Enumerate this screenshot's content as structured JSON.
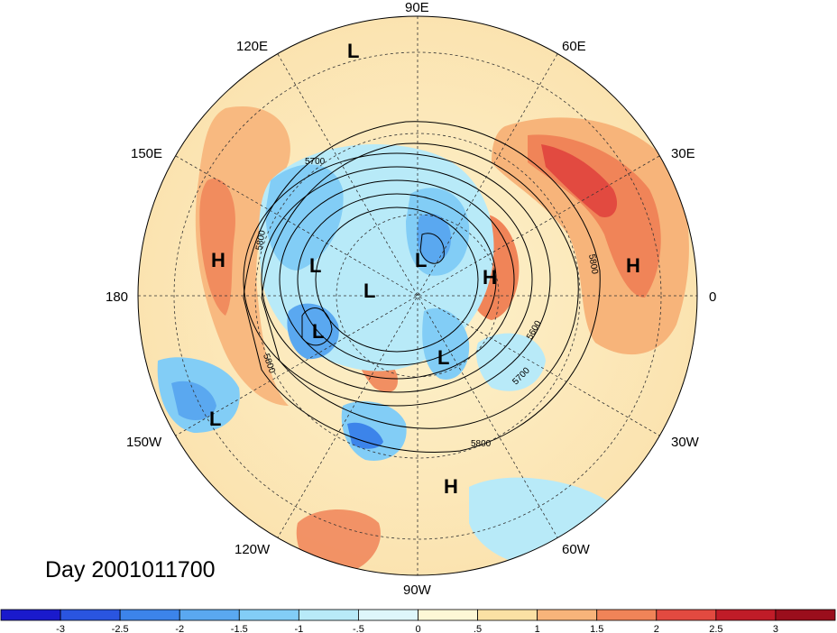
{
  "title": "Day 2001011700",
  "longitude_labels": [
    "90E",
    "60E",
    "30E",
    "0",
    "30W",
    "60W",
    "90W",
    "120W",
    "150W",
    "180",
    "150E",
    "120E"
  ],
  "contour_labels": [
    "5700",
    "5800",
    "5800",
    "5800",
    "5600",
    "5700",
    "5800"
  ],
  "pressure_centers": [
    "L",
    "L",
    "L",
    "L",
    "L",
    "L",
    "L",
    "H",
    "H",
    "H",
    "H"
  ],
  "colorbar": {
    "tick_labels": [
      "-3",
      "-2.5",
      "-2",
      "-1.5",
      "-1",
      "-.5",
      "0",
      ".5",
      "1",
      "1.5",
      "2",
      "2.5",
      "3"
    ],
    "colors": [
      "#1a1acc",
      "#2a55e0",
      "#3c84ea",
      "#5aa8f0",
      "#82cdf6",
      "#b8eaf8",
      "#def6fb",
      "#fdf7d6",
      "#fbe1a4",
      "#f7b47a",
      "#f08458",
      "#e24a40",
      "#c01c28",
      "#9a0e1c"
    ]
  }
}
